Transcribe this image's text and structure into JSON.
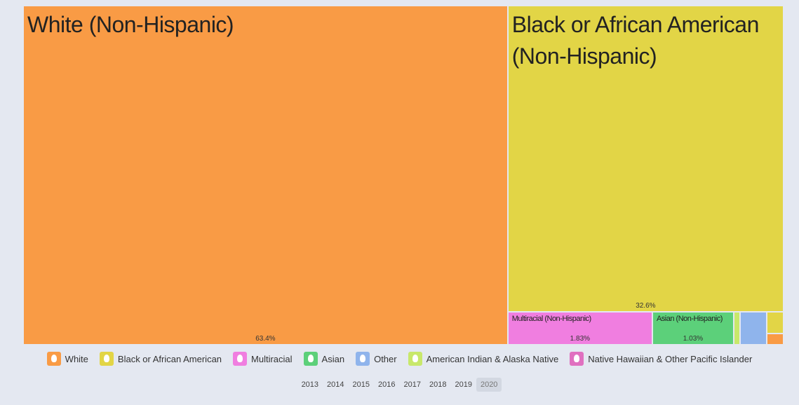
{
  "chart_data": {
    "type": "treemap",
    "labels": [
      "White (Non-Hispanic)",
      "Black or African American (Non-Hispanic)",
      "Multiracial (Non-Hispanic)",
      "Asian (Non-Hispanic)",
      null,
      null,
      null,
      null
    ],
    "values": [
      63.4,
      32.6,
      1.83,
      1.03,
      0.08,
      0.34,
      0.14,
      0.07
    ],
    "value_labels": [
      "63.4%",
      "32.6%",
      "1.83%",
      "1.03%",
      null,
      null,
      null,
      null
    ],
    "colors": [
      "#f99b45",
      "#e2d546",
      "#f07ee0",
      "#5cd07a",
      "#c8e86b",
      "#8fb4ec",
      "#e2d546",
      "#f99b45"
    ],
    "legend": [
      {
        "name": "White",
        "color": "#f99b45"
      },
      {
        "name": "Black or African American",
        "color": "#e2d546"
      },
      {
        "name": "Multiracial",
        "color": "#f07ee0"
      },
      {
        "name": "Asian",
        "color": "#5cd07a"
      },
      {
        "name": "Other",
        "color": "#8fb4ec"
      },
      {
        "name": "American Indian & Alaska Native",
        "color": "#c8e86b"
      },
      {
        "name": "Native Hawaiian & Other Pacific Islander",
        "color": "#e070c0"
      }
    ],
    "years": [
      "2013",
      "2014",
      "2015",
      "2016",
      "2017",
      "2018",
      "2019",
      "2020"
    ],
    "selected_year": 7
  }
}
